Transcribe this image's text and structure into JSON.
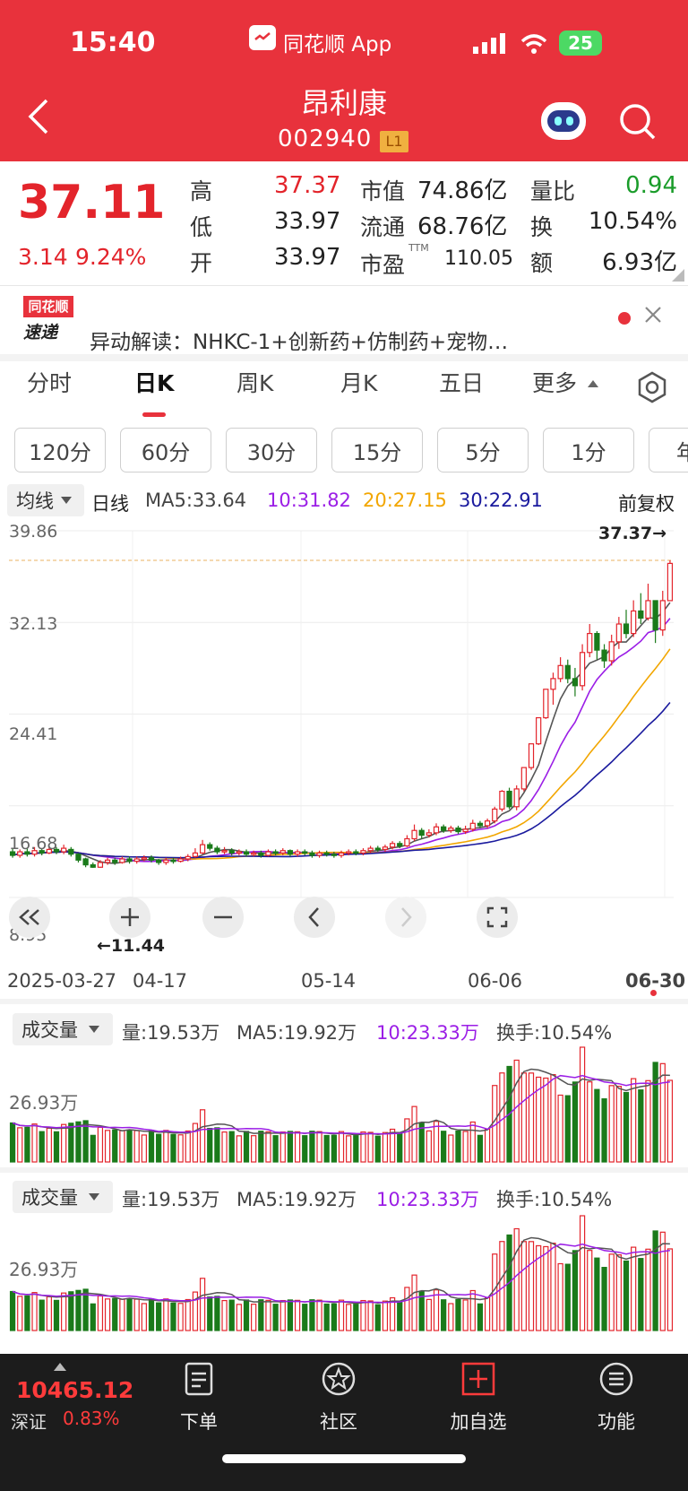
{
  "status_bar": {
    "time": "15:40",
    "app_name": "同花顺 App",
    "battery": "25"
  },
  "header": {
    "title": "昂利康",
    "code": "002940",
    "level_badge": "L1"
  },
  "quote": {
    "price": "37.11",
    "change": "3.14",
    "change_pct": "9.24%",
    "rows": [
      {
        "l1": "高",
        "v1": "37.37",
        "l2": "市值",
        "v2": "74.86亿",
        "l3": "量比",
        "v3": "0.94"
      },
      {
        "l1": "低",
        "v1": "33.97",
        "l2": "流通",
        "v2": "68.76亿",
        "l3": "换",
        "v3": "10.54%"
      },
      {
        "l1": "开",
        "v1": "33.97",
        "l2": "市盈",
        "l2_sup": "TTM",
        "v2": "110.05",
        "l3": "额",
        "v3": "6.93亿"
      }
    ]
  },
  "news": {
    "logo_top": "同花顺",
    "logo_bottom": "速递",
    "text": "异动解读：NHKC-1+创新药+仿制药+宠物…"
  },
  "tabs": [
    "分时",
    "日K",
    "周K",
    "月K",
    "五日",
    "更多"
  ],
  "active_tab": "日K",
  "period_buttons": [
    "120分",
    "60分",
    "30分",
    "15分",
    "5分",
    "1分",
    "年"
  ],
  "ma_bar": {
    "selector": "均线",
    "kind": "日线",
    "ma5": "MA5:33.64",
    "ma10": "10:31.82",
    "ma20": "20:27.15",
    "ma30": "30:22.91",
    "adjust": "前复权"
  },
  "price_axis": {
    "labels": [
      "39.86",
      "32.13",
      "24.41",
      "16.68",
      "8.95"
    ],
    "high_marker": "37.37→",
    "low_marker": "←11.44"
  },
  "date_axis": [
    "2025-03-27",
    "04-17",
    "05-14",
    "06-06",
    "06-30"
  ],
  "volume_panels": [
    {
      "selector": "成交量",
      "vol": "量:19.53万",
      "ma5": "MA5:19.92万",
      "ma10": "10:23.33万",
      "turnover": "换手:10.54%",
      "axis_label": "26.93万"
    },
    {
      "selector": "成交量",
      "vol": "量:19.53万",
      "ma5": "MA5:19.92万",
      "ma10": "10:23.33万",
      "turnover": "换手:10.54%",
      "axis_label": "26.93万"
    }
  ],
  "bottom_nav": {
    "index_value": "10465.12",
    "index_name": "深证",
    "index_pct": "0.83%",
    "items": [
      {
        "label": "下单",
        "icon": "order-icon"
      },
      {
        "label": "社区",
        "icon": "community-icon"
      },
      {
        "label": "加自选",
        "icon": "add-watchlist-icon"
      },
      {
        "label": "功能",
        "icon": "menu-icon"
      }
    ]
  },
  "colors": {
    "brand_red": "#e8323c",
    "up": "#e3242b",
    "down": "#1a7a1a",
    "ma5": "#555555",
    "ma10": "#9b1ee6",
    "ma20": "#f2a600",
    "ma30": "#1a1a9e"
  },
  "chart_data": [
    {
      "type": "candlestick",
      "title": "",
      "y_ticks": [
        39.86,
        32.13,
        24.41,
        16.68,
        8.95
      ],
      "ylim": [
        8.95,
        39.86
      ],
      "x_ticks": [
        "2025-03-27",
        "04-17",
        "05-14",
        "06-06",
        "06-30"
      ],
      "candles": [
        [
          12.8,
          12.5,
          13.1,
          12.3
        ],
        [
          12.5,
          12.8,
          13.0,
          12.3
        ],
        [
          12.8,
          12.6,
          13.1,
          12.4
        ],
        [
          12.6,
          12.9,
          13.2,
          12.4
        ],
        [
          12.9,
          12.7,
          13.1,
          12.5
        ],
        [
          12.7,
          13.0,
          13.3,
          12.6
        ],
        [
          13.0,
          12.8,
          13.2,
          12.6
        ],
        [
          12.8,
          13.1,
          13.4,
          12.6
        ],
        [
          13.0,
          12.6,
          13.2,
          12.4
        ],
        [
          12.6,
          12.1,
          12.7,
          11.9
        ],
        [
          12.2,
          11.7,
          12.3,
          11.5
        ],
        [
          11.7,
          11.5,
          11.9,
          11.44
        ],
        [
          11.5,
          11.9,
          12.1,
          11.44
        ],
        [
          11.9,
          12.1,
          12.3,
          11.7
        ],
        [
          12.1,
          11.9,
          12.3,
          11.7
        ],
        [
          11.9,
          12.2,
          12.4,
          11.8
        ],
        [
          12.2,
          12.0,
          12.4,
          11.8
        ],
        [
          12.0,
          12.2,
          12.4,
          11.8
        ],
        [
          12.2,
          12.3,
          12.5,
          12.0
        ],
        [
          12.3,
          12.1,
          12.5,
          11.9
        ],
        [
          12.1,
          11.9,
          12.2,
          11.7
        ],
        [
          11.9,
          12.1,
          12.3,
          11.7
        ],
        [
          12.1,
          12.0,
          12.3,
          11.8
        ],
        [
          12.0,
          12.2,
          12.4,
          11.9
        ],
        [
          12.2,
          12.4,
          12.6,
          12.0
        ],
        [
          12.4,
          12.7,
          13.1,
          12.3
        ],
        [
          12.7,
          13.4,
          13.8,
          12.6
        ],
        [
          13.4,
          13.1,
          13.6,
          12.9
        ],
        [
          13.1,
          12.8,
          13.3,
          12.6
        ],
        [
          12.8,
          12.9,
          13.2,
          12.6
        ],
        [
          12.9,
          12.7,
          13.1,
          12.5
        ],
        [
          12.7,
          12.8,
          13.0,
          12.5
        ],
        [
          12.8,
          12.6,
          13.0,
          12.4
        ],
        [
          12.6,
          12.7,
          12.9,
          12.4
        ],
        [
          12.7,
          12.5,
          12.9,
          12.3
        ],
        [
          12.5,
          12.8,
          13.0,
          12.4
        ],
        [
          12.8,
          12.7,
          13.0,
          12.5
        ],
        [
          12.7,
          12.9,
          13.1,
          12.5
        ],
        [
          12.9,
          12.6,
          13.0,
          12.4
        ],
        [
          12.6,
          12.8,
          13.0,
          12.4
        ],
        [
          12.8,
          12.7,
          13.0,
          12.5
        ],
        [
          12.7,
          12.5,
          12.9,
          12.3
        ],
        [
          12.5,
          12.7,
          12.9,
          12.3
        ],
        [
          12.7,
          12.6,
          12.9,
          12.4
        ],
        [
          12.6,
          12.5,
          12.8,
          12.3
        ],
        [
          12.5,
          12.7,
          12.9,
          12.3
        ],
        [
          12.7,
          12.8,
          13.0,
          12.5
        ],
        [
          12.8,
          12.7,
          13.0,
          12.5
        ],
        [
          12.7,
          12.9,
          13.1,
          12.5
        ],
        [
          12.9,
          13.1,
          13.3,
          12.7
        ],
        [
          13.1,
          13.0,
          13.3,
          12.8
        ],
        [
          13.0,
          13.2,
          13.4,
          12.8
        ],
        [
          13.2,
          13.5,
          13.7,
          13.0
        ],
        [
          13.5,
          13.3,
          13.7,
          13.1
        ],
        [
          13.3,
          13.9,
          14.2,
          13.2
        ],
        [
          13.9,
          14.6,
          15.1,
          13.7
        ],
        [
          14.6,
          14.2,
          14.8,
          13.9
        ],
        [
          14.2,
          14.4,
          14.7,
          14.0
        ],
        [
          14.4,
          14.9,
          15.2,
          14.2
        ],
        [
          14.9,
          14.6,
          15.1,
          14.4
        ],
        [
          14.6,
          14.8,
          15.0,
          14.4
        ],
        [
          14.8,
          14.5,
          15.0,
          14.3
        ],
        [
          14.5,
          14.7,
          15.0,
          14.3
        ],
        [
          14.7,
          15.2,
          15.5,
          14.5
        ],
        [
          15.2,
          15.0,
          15.4,
          14.8
        ],
        [
          15.0,
          15.4,
          15.6,
          14.8
        ],
        [
          15.4,
          16.4,
          16.6,
          15.2
        ],
        [
          16.4,
          17.9,
          18.0,
          16.2
        ],
        [
          17.9,
          16.6,
          18.2,
          16.4
        ],
        [
          16.6,
          18.1,
          18.4,
          16.3
        ],
        [
          18.1,
          19.9,
          19.9,
          17.9
        ],
        [
          19.9,
          21.9,
          21.9,
          19.7
        ],
        [
          21.9,
          24.1,
          24.1,
          21.8
        ],
        [
          24.1,
          26.5,
          26.5,
          24.0
        ],
        [
          26.5,
          27.4,
          27.9,
          25.2
        ],
        [
          27.4,
          28.5,
          29.2,
          27.1
        ],
        [
          28.5,
          27.4,
          29.0,
          27.0
        ],
        [
          27.4,
          26.8,
          28.3,
          25.9
        ],
        [
          26.8,
          29.6,
          30.3,
          26.4
        ],
        [
          29.6,
          31.2,
          32.0,
          29.2
        ],
        [
          31.2,
          29.8,
          31.4,
          29.0
        ],
        [
          29.8,
          28.9,
          30.3,
          28.3
        ],
        [
          28.9,
          30.5,
          31.1,
          28.5
        ],
        [
          30.5,
          32.0,
          32.6,
          29.9
        ],
        [
          32.0,
          31.2,
          33.2,
          30.8
        ],
        [
          31.2,
          33.1,
          34.0,
          30.9
        ],
        [
          33.1,
          32.5,
          34.6,
          32.0
        ],
        [
          32.5,
          33.97,
          35.4,
          32.3
        ],
        [
          33.97,
          31.5,
          33.97,
          30.4
        ],
        [
          31.5,
          33.97,
          34.8,
          31.0
        ],
        [
          33.97,
          37.11,
          37.37,
          33.97
        ]
      ],
      "series": [
        {
          "name": "MA5",
          "last": 33.64
        },
        {
          "name": "10",
          "last": 31.82
        },
        {
          "name": "20",
          "last": 27.15
        },
        {
          "name": "30",
          "last": 22.91
        }
      ],
      "high_marker": 37.37,
      "low_marker": 11.44
    },
    {
      "type": "bar",
      "title": "成交量",
      "axis_label": "26.93万",
      "last_volume_wan": 19.53,
      "ma5_wan": 19.92,
      "ma10_wan": 23.33
    }
  ]
}
